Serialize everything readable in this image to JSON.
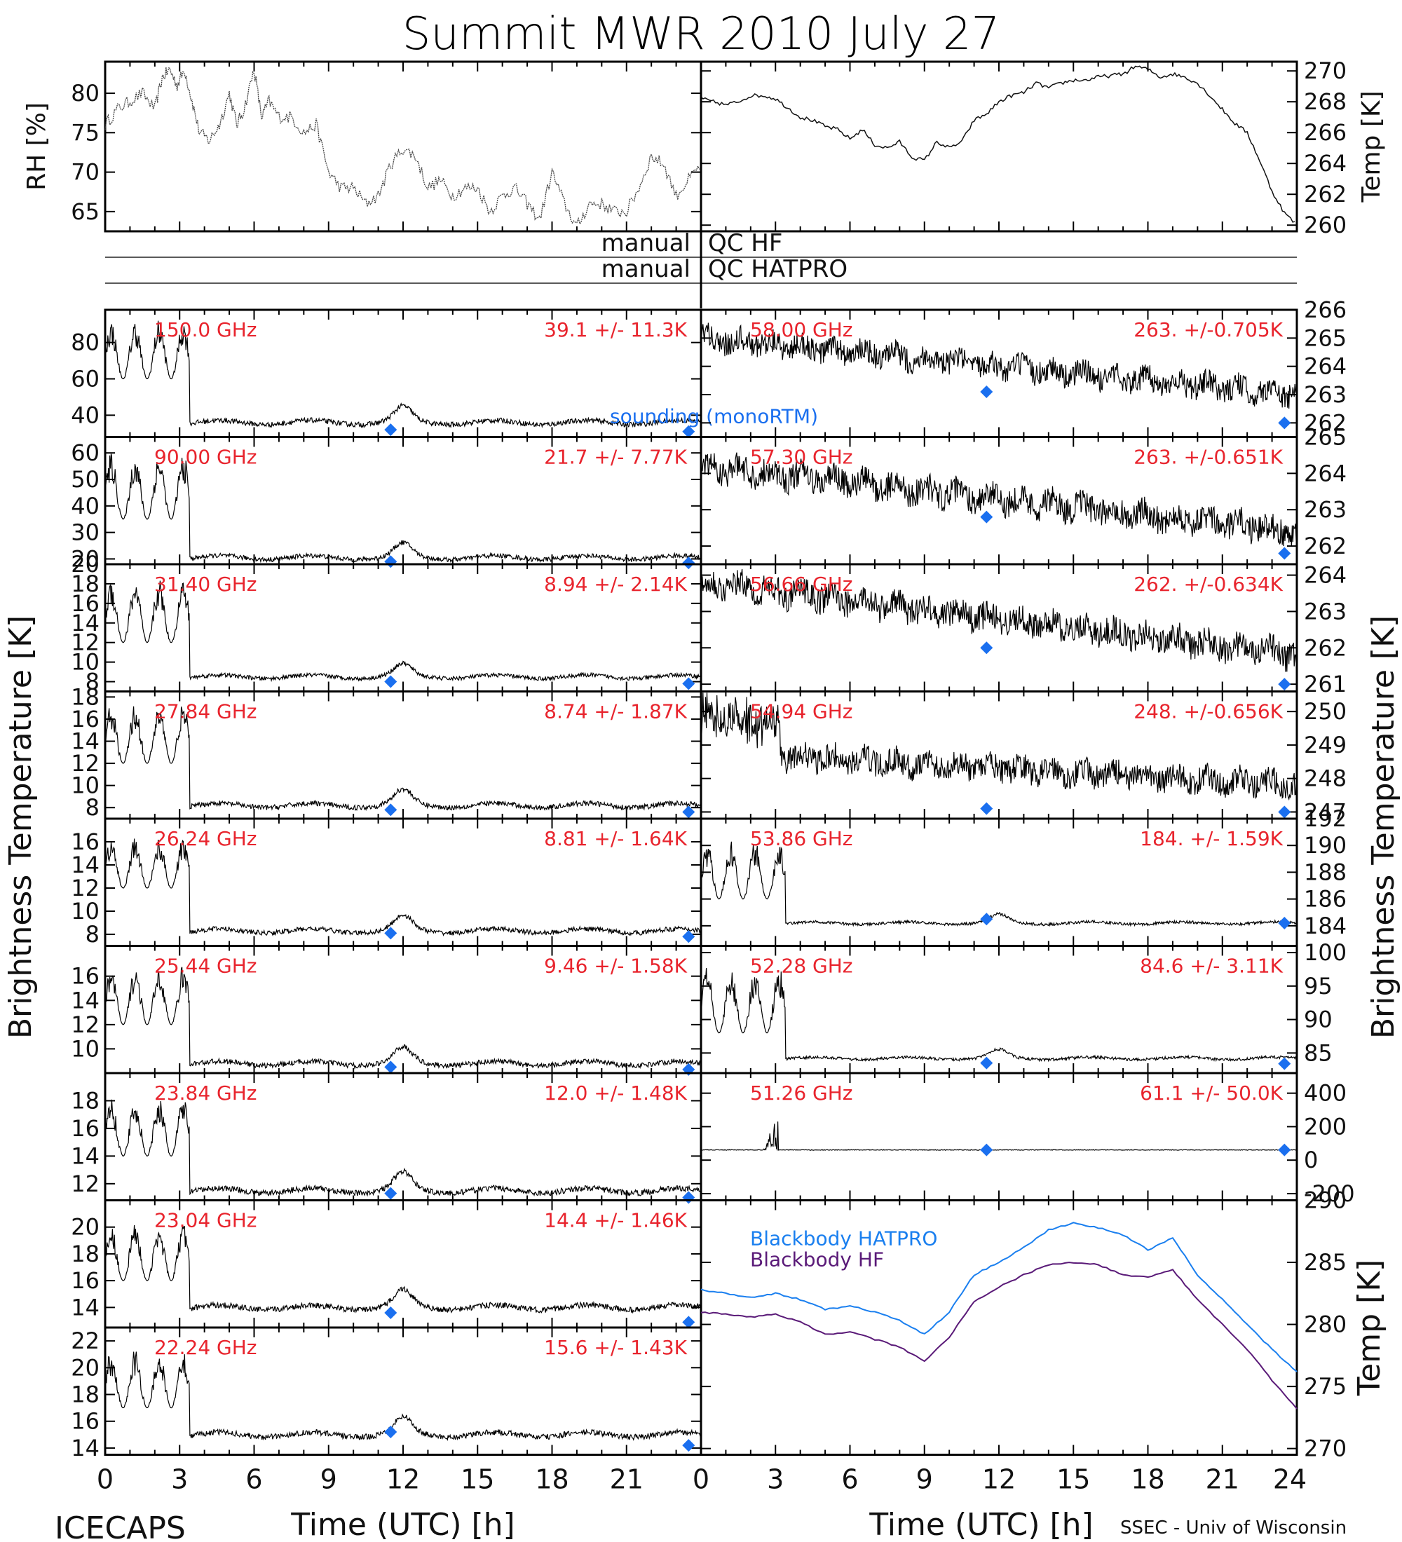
{
  "title": "Summit MWR 2010 July 27",
  "footer_left": "ICECAPS",
  "footer_right": "SSEC - Univ of Wisconsin",
  "x_label": "Time (UTC) [h]",
  "y_label_left": "Brightness Temperature [K]",
  "y_label_right": "Brightness Temperature [K]",
  "qc_left": "manual",
  "qc_hf": "QC HF",
  "qc_hatpro": "QC HATPRO",
  "colors": {
    "trace": "#000000",
    "text_red": "#e8242d",
    "sounding": "#1a6fef",
    "bb_hatpro": "#1a7fef",
    "bb_hf": "#5a1a78"
  },
  "chart_data": [
    {
      "type": "line",
      "name_id": "rh",
      "ylabel": "RH [%]",
      "xlim": [
        0,
        24
      ],
      "ylim": [
        62.5,
        84
      ],
      "yticks": [
        65,
        70,
        75,
        80
      ],
      "x": [
        0,
        0.5,
        1,
        1.5,
        2,
        2.3,
        2.6,
        2.9,
        3.2,
        3.5,
        3.8,
        4.2,
        4.6,
        5,
        5.3,
        5.6,
        6,
        6.3,
        6.6,
        7,
        7.5,
        8,
        8.5,
        9,
        9.5,
        10,
        10.5,
        11,
        11.5,
        12,
        12.5,
        13,
        13.5,
        14,
        14.5,
        15,
        15.5,
        16,
        16.5,
        17,
        17.5,
        18,
        18.5,
        19,
        19.5,
        20,
        20.5,
        21,
        21.5,
        22,
        22.5,
        23,
        23.5,
        24
      ],
      "y": [
        76,
        78,
        79,
        80,
        78,
        82,
        83,
        81,
        83,
        79,
        75,
        74,
        76,
        80,
        76,
        78,
        83,
        77,
        79,
        77,
        77,
        75,
        76,
        70,
        68,
        68,
        66,
        67,
        71,
        73,
        72,
        68,
        69,
        67,
        68,
        68,
        65,
        67,
        68,
        66,
        64,
        70,
        66,
        63,
        66,
        66,
        65,
        65,
        68,
        72,
        71,
        67,
        69,
        71
      ]
    },
    {
      "type": "line",
      "name_id": "temp",
      "ylabel": "Temp [K]",
      "xlim": [
        0,
        24
      ],
      "ylim": [
        259.6,
        270.6
      ],
      "yticks": [
        260,
        262,
        264,
        266,
        268,
        270
      ],
      "x": [
        0,
        0.5,
        1,
        1.5,
        2,
        2.5,
        3,
        3.5,
        4,
        4.5,
        5,
        5.5,
        6,
        6.5,
        7,
        7.5,
        8,
        8.5,
        9,
        9.5,
        10,
        10.5,
        11,
        11.5,
        12,
        12.5,
        13,
        13.5,
        14,
        14.5,
        15,
        15.5,
        16,
        16.5,
        17,
        17.5,
        18,
        18.5,
        19,
        19.5,
        20,
        20.5,
        21,
        21.5,
        22,
        22.5,
        23,
        23.5,
        24
      ],
      "y": [
        268.2,
        268.0,
        267.8,
        268.0,
        268.4,
        268.4,
        268.2,
        267.6,
        267.0,
        266.8,
        266.4,
        266.2,
        265.6,
        266.2,
        265.2,
        265.0,
        265.4,
        264.4,
        264.2,
        265.4,
        265.0,
        265.4,
        266.8,
        267.2,
        268.0,
        268.4,
        268.6,
        269.2,
        268.9,
        269.2,
        269.4,
        269.4,
        269.6,
        269.7,
        269.8,
        270.3,
        270.1,
        269.6,
        269.8,
        269.6,
        269.2,
        268.4,
        267.5,
        266.6,
        266.0,
        264.2,
        262.2,
        260.8,
        260.0
      ]
    },
    {
      "type": "line",
      "freq": "150.0 GHz",
      "stat": "39.1 +/-  11.3K",
      "ylim": [
        28,
        98
      ],
      "yticks": [
        40,
        60,
        80
      ],
      "spike": [
        60,
        90
      ],
      "base": 36,
      "bump": 8,
      "sound": [
        [
          11.5,
          32
        ],
        [
          23.5,
          31
        ]
      ],
      "note": "sounding (monoRTM)"
    },
    {
      "type": "line",
      "freq": "90.00 GHz",
      "stat": "21.7 +/-  7.77K",
      "ylim": [
        18,
        66
      ],
      "yticks": [
        20,
        30,
        40,
        50,
        60
      ],
      "spike": [
        35,
        58
      ],
      "base": 20.5,
      "bump": 5,
      "sound": [
        [
          11.5,
          19
        ],
        [
          23.5,
          18.5
        ]
      ]
    },
    {
      "type": "line",
      "freq": "31.40 GHz",
      "stat": "8.94 +/- 2.14K",
      "ylim": [
        7,
        20
      ],
      "yticks": [
        8,
        10,
        12,
        14,
        16,
        18,
        20
      ],
      "spike": [
        12,
        18
      ],
      "base": 8.5,
      "bump": 1.2,
      "sound": [
        [
          11.5,
          8
        ],
        [
          23.5,
          7.8
        ]
      ]
    },
    {
      "type": "line",
      "freq": "27.84 GHz",
      "stat": "8.74 +/- 1.87K",
      "ylim": [
        7,
        18.5
      ],
      "yticks": [
        8,
        10,
        12,
        14,
        16,
        18
      ],
      "spike": [
        12,
        17
      ],
      "base": 8.2,
      "bump": 1.3,
      "sound": [
        [
          11.5,
          7.8
        ],
        [
          23.5,
          7.6
        ]
      ]
    },
    {
      "type": "line",
      "freq": "26.24 GHz",
      "stat": "8.81 +/- 1.64K",
      "ylim": [
        7,
        18
      ],
      "yticks": [
        8,
        10,
        12,
        14,
        16
      ],
      "spike": [
        12,
        16
      ],
      "base": 8.3,
      "bump": 1.2,
      "sound": [
        [
          11.5,
          8.1
        ],
        [
          23.5,
          7.8
        ]
      ]
    },
    {
      "type": "line",
      "freq": "25.44 GHz",
      "stat": "9.46 +/- 1.58K",
      "ylim": [
        8,
        18.5
      ],
      "yticks": [
        10,
        12,
        14,
        16
      ],
      "spike": [
        12,
        16.5
      ],
      "base": 8.8,
      "bump": 1.2,
      "sound": [
        [
          11.5,
          8.5
        ],
        [
          23.5,
          8.3
        ]
      ]
    },
    {
      "type": "line",
      "freq": "23.84 GHz",
      "stat": "12.0 +/- 1.48K",
      "ylim": [
        10.8,
        20
      ],
      "yticks": [
        12,
        14,
        16,
        18
      ],
      "spike": [
        14,
        18
      ],
      "base": 11.5,
      "bump": 1.2,
      "sound": [
        [
          11.5,
          11.3
        ],
        [
          23.5,
          11
        ]
      ]
    },
    {
      "type": "line",
      "freq": "23.04 GHz",
      "stat": "14.4 +/- 1.46K",
      "ylim": [
        12.5,
        22
      ],
      "yticks": [
        14,
        16,
        18,
        20
      ],
      "spike": [
        16,
        20
      ],
      "base": 14.0,
      "bump": 1.2,
      "sound": [
        [
          11.5,
          13.6
        ],
        [
          23.5,
          12.9
        ]
      ]
    },
    {
      "type": "line",
      "freq": "22.24 GHz",
      "stat": "15.6 +/- 1.43K",
      "ylim": [
        13.5,
        23
      ],
      "yticks": [
        14,
        16,
        18,
        20,
        22
      ],
      "spike": [
        17,
        21
      ],
      "base": 15.0,
      "bump": 1.2,
      "sound": [
        [
          11.5,
          15.2
        ],
        [
          23.5,
          14.2
        ]
      ]
    },
    {
      "type": "line",
      "freq": "58.00 GHz",
      "stat": "263. +/-0.705K",
      "ylim": [
        261.5,
        266
      ],
      "yticks": [
        262,
        263,
        264,
        265,
        266
      ],
      "trend": [
        265,
        263
      ],
      "noise": 0.4,
      "sound": [
        [
          11.5,
          263.1
        ],
        [
          23.5,
          262
        ]
      ]
    },
    {
      "type": "line",
      "freq": "57.30 GHz",
      "stat": "263. +/-0.651K",
      "ylim": [
        261.5,
        265
      ],
      "yticks": [
        262,
        263,
        264,
        265
      ],
      "trend": [
        264.2,
        262.4
      ],
      "noise": 0.35,
      "sound": [
        [
          11.5,
          262.8
        ],
        [
          23.5,
          261.8
        ]
      ]
    },
    {
      "type": "line",
      "freq": "56.66 GHz",
      "stat": "262. +/-0.634K",
      "ylim": [
        260.8,
        264.3
      ],
      "yticks": [
        261,
        262,
        263,
        264
      ],
      "trend": [
        263.8,
        261.8
      ],
      "noise": 0.35,
      "sound": [
        [
          11.5,
          262
        ],
        [
          23.5,
          261
        ]
      ]
    },
    {
      "type": "line",
      "freq": "54.94 GHz",
      "stat": "248. +/-0.656K",
      "ylim": [
        246.8,
        250.6
      ],
      "yticks": [
        247,
        248,
        249,
        250
      ],
      "trend": [
        248.8,
        247.8
      ],
      "noise": 0.35,
      "early": 1.2,
      "sound": [
        [
          11.5,
          247.1
        ],
        [
          23.5,
          247
        ]
      ]
    },
    {
      "type": "line",
      "freq": "53.86 GHz",
      "stat": "184. +/- 1.59K",
      "ylim": [
        182.5,
        192
      ],
      "yticks": [
        184,
        186,
        188,
        190,
        192
      ],
      "spike": [
        186,
        190
      ],
      "base": 184.2,
      "bump": 0.6,
      "sound": [
        [
          11.5,
          184.5
        ],
        [
          23.5,
          184.2
        ]
      ]
    },
    {
      "type": "line",
      "freq": "52.28 GHz",
      "stat": "84.6 +/- 3.11K",
      "ylim": [
        82,
        101
      ],
      "yticks": [
        85,
        90,
        95,
        100
      ],
      "spike": [
        88,
        97
      ],
      "base": 84.2,
      "bump": 1.2,
      "sound": [
        [
          11.5,
          83.5
        ],
        [
          23.5,
          83.4
        ]
      ]
    },
    {
      "type": "line",
      "freq": "51.26 GHz",
      "stat": "61.1 +/- 50.0K",
      "ylim": [
        -240,
        520
      ],
      "yticks": [
        -200,
        0,
        200,
        400
      ],
      "flat": 61,
      "sound": [
        [
          11.5,
          61
        ],
        [
          23.5,
          61
        ]
      ]
    },
    {
      "type": "line",
      "name_id": "blackbody",
      "ylabel": "Temp [K]",
      "xlim": [
        0,
        24
      ],
      "ylim": [
        269.5,
        290
      ],
      "yticks": [
        270,
        275,
        280,
        285,
        290
      ],
      "legend": [
        "Blackbody HATPRO",
        "Blackbody HF"
      ],
      "x": [
        0,
        1,
        2,
        3,
        4,
        5,
        6,
        7,
        8,
        9,
        10,
        11,
        12,
        13,
        14,
        15,
        16,
        17,
        18,
        19,
        20,
        21,
        22,
        23,
        24
      ],
      "series": [
        {
          "name": "Blackbody HATPRO",
          "values": [
            282.8,
            282.5,
            282.2,
            282.5,
            282.0,
            281.2,
            281.5,
            281.0,
            280.3,
            279.2,
            281.0,
            284.0,
            285.0,
            286.2,
            287.6,
            288.2,
            287.8,
            287.2,
            286.0,
            287.0,
            284.0,
            282.0,
            280.0,
            278.0,
            276.2
          ]
        },
        {
          "name": "Blackbody HF",
          "values": [
            281.0,
            280.8,
            280.6,
            280.8,
            280.2,
            279.2,
            279.4,
            278.8,
            278.2,
            277.0,
            279.0,
            281.8,
            283.0,
            284.0,
            284.8,
            285.0,
            284.8,
            284.0,
            283.8,
            284.4,
            282.0,
            280.0,
            278.0,
            275.5,
            273.2
          ]
        }
      ]
    }
  ],
  "x_ticks_left": [
    "0",
    "3",
    "6",
    "9",
    "12",
    "15",
    "18",
    "21"
  ],
  "x_ticks_right": [
    "0",
    "3",
    "6",
    "9",
    "12",
    "15",
    "18",
    "21",
    "24"
  ]
}
